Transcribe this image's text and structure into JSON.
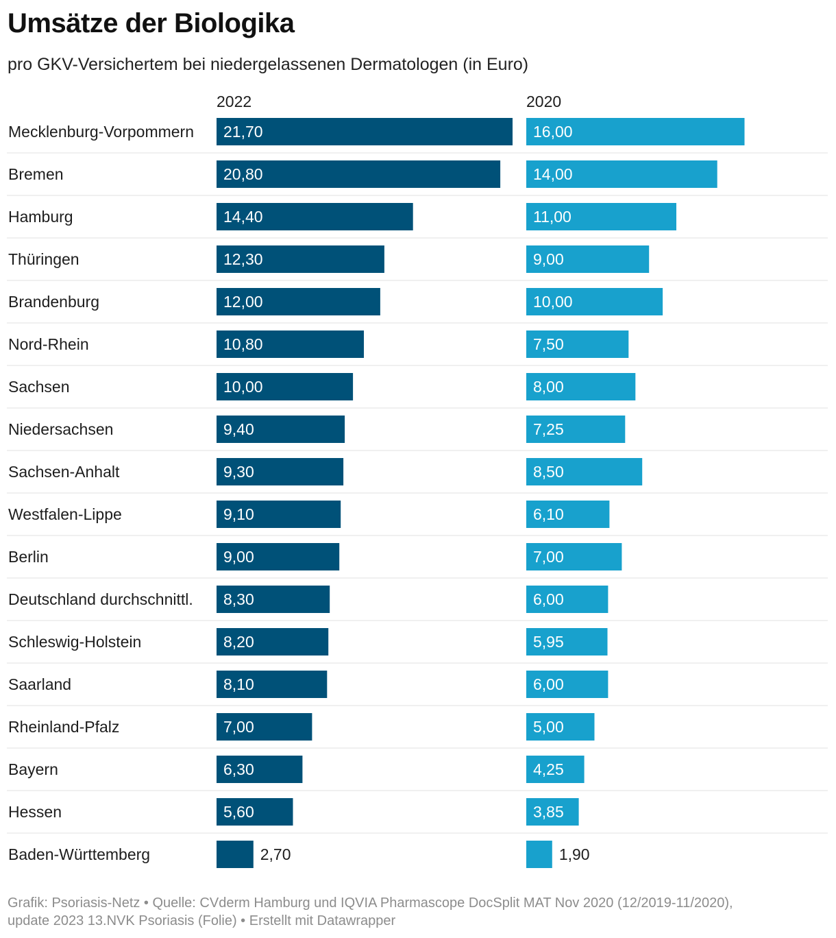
{
  "title": "Umsätze der Biologika",
  "subtitle": "pro GKV-Versichertem bei niedergelassenen Dermatologen (in Euro)",
  "footer": {
    "line1": "Grafik: Psoriasis-Netz • Quelle: CVderm Hamburg und IQVIA Pharmascope DocSplit MAT Nov 2020 (12/2019-11/2020),",
    "line2": "update 2023 13.NVK Psoriasis (Folie) • Erstellt mit Datawrapper"
  },
  "colors": {
    "series_2022": "#005178",
    "series_2020": "#18a1cd",
    "label_inside": "#ffffff",
    "label_outside": "#1d1d1d",
    "divider": "#e0e0e0"
  },
  "chart_data": {
    "type": "bar",
    "orientation": "horizontal",
    "categories": [
      "Mecklenburg-Vorpommern",
      "Bremen",
      "Hamburg",
      "Thüringen",
      "Brandenburg",
      "Nord-Rhein",
      "Sachsen",
      "Niedersachsen",
      "Sachsen-Anhalt",
      "Westfalen-Lippe",
      "Berlin",
      "Deutschland durchschnittl.",
      "Schleswig-Holstein",
      "Saarland",
      "Rheinland-Pfalz",
      "Bayern",
      "Hessen",
      "Baden-Württemberg"
    ],
    "series": [
      {
        "name": "2022",
        "values": [
          21.7,
          20.8,
          14.4,
          12.3,
          12.0,
          10.8,
          10.0,
          9.4,
          9.3,
          9.1,
          9.0,
          8.3,
          8.2,
          8.1,
          7.0,
          6.3,
          5.6,
          2.7
        ],
        "labels": [
          "21,70",
          "20,80",
          "14,40",
          "12,30",
          "12,00",
          "10,80",
          "10,00",
          "9,40",
          "9,30",
          "9,10",
          "9,00",
          "8,30",
          "8,20",
          "8,10",
          "7,00",
          "6,30",
          "5,60",
          "2,70"
        ]
      },
      {
        "name": "2020",
        "values": [
          16.0,
          14.0,
          11.0,
          9.0,
          10.0,
          7.5,
          8.0,
          7.25,
          8.5,
          6.1,
          7.0,
          6.0,
          5.95,
          6.0,
          5.0,
          4.25,
          3.85,
          1.9
        ],
        "labels": [
          "16,00",
          "14,00",
          "11,00",
          "9,00",
          "10,00",
          "7,50",
          "8,00",
          "7,25",
          "8,50",
          "6,10",
          "7,00",
          "6,00",
          "5,95",
          "6,00",
          "5,00",
          "4,25",
          "3,85",
          "1,90"
        ]
      }
    ],
    "title": "Umsätze der Biologika",
    "xlabel": "",
    "ylabel": "",
    "xlim": [
      0,
      21.7
    ],
    "unit": "Euro"
  }
}
